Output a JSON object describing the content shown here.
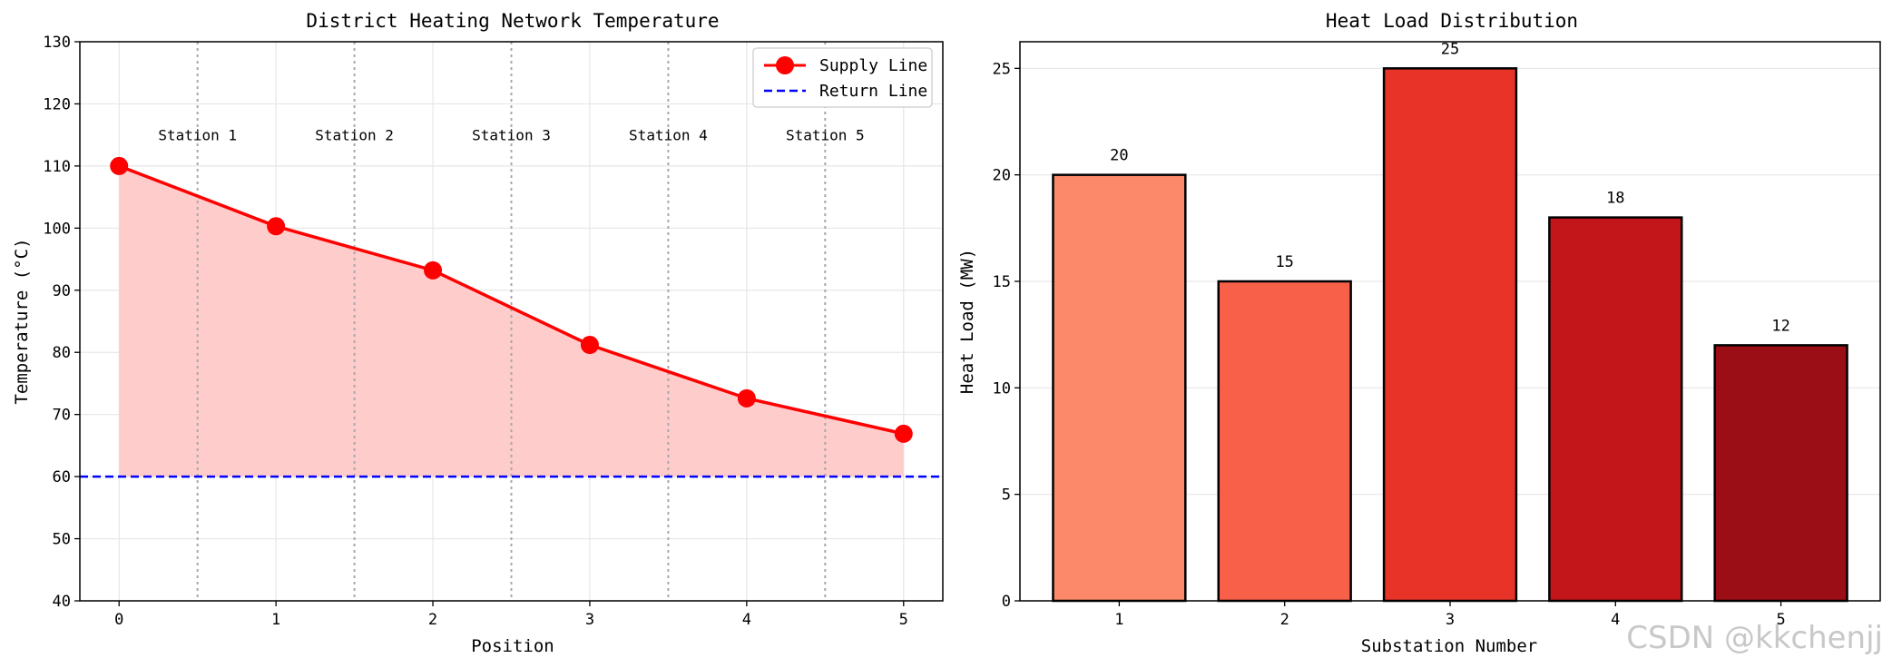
{
  "watermark": "CSDN @kkchenjj",
  "chart_data": [
    {
      "type": "line",
      "title": "District Heating Network Temperature",
      "xlabel": "Position",
      "ylabel": "Temperature (°C)",
      "xlim": [
        -0.25,
        5.25
      ],
      "ylim": [
        40,
        130
      ],
      "xticks": [
        0,
        1,
        2,
        3,
        4,
        5
      ],
      "yticks": [
        40,
        50,
        60,
        70,
        80,
        90,
        100,
        110,
        120,
        130
      ],
      "grid": true,
      "legend_position": "top-right",
      "series": [
        {
          "name": "Supply Line",
          "x": [
            0,
            1,
            2,
            3,
            4,
            5
          ],
          "y": [
            110,
            100.3,
            93.2,
            81.2,
            72.6,
            66.9
          ],
          "color": "#ff0000",
          "style": "solid-with-markers"
        },
        {
          "name": "Return Line",
          "y_constant": 60,
          "color": "#0000ff",
          "style": "dashed"
        }
      ],
      "fill_between": {
        "lower": 60,
        "color": "#ffcccc"
      },
      "annotations": [
        {
          "text": "Station 1",
          "x": 0.5,
          "y": 115
        },
        {
          "text": "Station 2",
          "x": 1.5,
          "y": 115
        },
        {
          "text": "Station 3",
          "x": 2.5,
          "y": 115
        },
        {
          "text": "Station 4",
          "x": 3.5,
          "y": 115
        },
        {
          "text": "Station 5",
          "x": 4.5,
          "y": 115
        }
      ],
      "vlines": [
        0.5,
        1.5,
        2.5,
        3.5,
        4.5
      ]
    },
    {
      "type": "bar",
      "title": "Heat Load Distribution",
      "xlabel": "Substation Number",
      "ylabel": "Heat Load (MW)",
      "categories": [
        "1",
        "2",
        "3",
        "4",
        "5"
      ],
      "values": [
        20,
        15,
        25,
        18,
        12
      ],
      "data_labels": [
        "20",
        "15",
        "25",
        "18",
        "12"
      ],
      "colors": [
        "#fc8a6a",
        "#f9604a",
        "#e83328",
        "#c3161b",
        "#9c0e15"
      ],
      "ylim": [
        0,
        26.25
      ],
      "yticks": [
        0,
        5,
        10,
        15,
        20,
        25
      ],
      "grid": true
    }
  ]
}
